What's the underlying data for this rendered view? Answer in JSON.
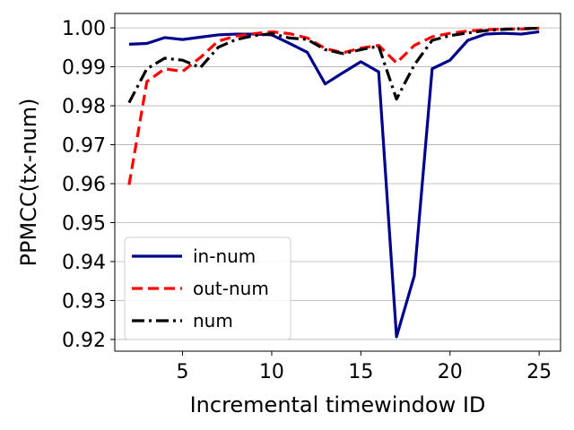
{
  "chart_data": {
    "type": "line",
    "xlabel": "Incremental timewindow ID",
    "ylabel": "PPMCC(tx-num)",
    "xlim": [
      1.2,
      26.2
    ],
    "ylim": [
      0.917,
      1.0037
    ],
    "xticks": [
      5,
      10,
      15,
      20,
      25
    ],
    "yticks": [
      0.92,
      0.93,
      0.94,
      0.95,
      0.96,
      0.97,
      0.98,
      0.99,
      1.0
    ],
    "xtick_labels": [
      "5",
      "10",
      "15",
      "20",
      "25"
    ],
    "ytick_labels": [
      "0.92",
      "0.93",
      "0.94",
      "0.95",
      "0.96",
      "0.97",
      "0.98",
      "0.99",
      "1.00"
    ],
    "grid": "horizontal",
    "legend_position": "lower-left",
    "x": [
      2,
      3,
      4,
      5,
      6,
      7,
      8,
      9,
      10,
      11,
      12,
      13,
      14,
      15,
      16,
      17,
      18,
      19,
      20,
      21,
      22,
      23,
      24,
      25
    ],
    "series": [
      {
        "name": "in-num",
        "color": "#00008b",
        "style": "solid",
        "values": [
          0.9958,
          0.996,
          0.9975,
          0.997,
          0.9976,
          0.9982,
          0.9984,
          0.9984,
          0.9982,
          0.996,
          0.9937,
          0.9856,
          0.9885,
          0.9913,
          0.9887,
          0.9207,
          0.9364,
          0.9895,
          0.9917,
          0.9968,
          0.9984,
          0.9986,
          0.9984,
          0.999
        ]
      },
      {
        "name": "out-num",
        "color": "#ff0000",
        "style": "dashed",
        "values": [
          0.9597,
          0.9862,
          0.9895,
          0.9888,
          0.9924,
          0.9966,
          0.9979,
          0.9985,
          0.999,
          0.9985,
          0.9974,
          0.9947,
          0.9936,
          0.9948,
          0.9955,
          0.991,
          0.9955,
          0.9977,
          0.9986,
          0.9992,
          0.9995,
          0.9997,
          0.9997,
          0.9999
        ]
      },
      {
        "name": "num",
        "color": "#000000",
        "style": "dashdot",
        "values": [
          0.9808,
          0.9895,
          0.9922,
          0.9917,
          0.9898,
          0.995,
          0.997,
          0.998,
          0.9985,
          0.9974,
          0.997,
          0.9944,
          0.9934,
          0.9944,
          0.9953,
          0.9817,
          0.9905,
          0.9968,
          0.998,
          0.9987,
          0.9993,
          0.9996,
          0.9998,
          0.9999
        ]
      }
    ]
  }
}
